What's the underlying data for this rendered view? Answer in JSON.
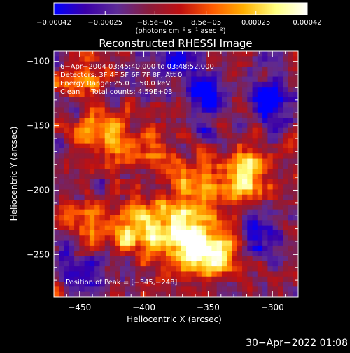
{
  "chart_data": {
    "type": "heatmap",
    "title": "Reconstructed RHESSI Image",
    "xlabel": "Heliocentric X (arcsec)",
    "ylabel": "Heliocentric Y (arcsec)",
    "xlim": [
      -470,
      -280
    ],
    "ylim": [
      -283,
      -92
    ],
    "x_ticks": [
      -450,
      -400,
      -350,
      -300
    ],
    "x_tick_labels": [
      "−450",
      "−400",
      "−350",
      "−300"
    ],
    "y_ticks": [
      -100,
      -150,
      -200,
      -250
    ],
    "y_tick_labels": [
      "−100",
      "−150",
      "−200",
      "−250"
    ],
    "colorbar": {
      "range": [
        -0.00042,
        0.00042
      ],
      "ticks": [
        -0.00042,
        -0.00025,
        -8.5e-05,
        8.5e-05,
        0.00025,
        0.00042
      ],
      "tick_labels": [
        "−0.00042",
        "−0.00025",
        "−8.5e−05",
        "8.5e−05",
        "0.00025",
        "0.00042"
      ],
      "unit_label": "(photons cm⁻² s⁻¹ asec⁻²)",
      "colors": [
        "#0000ff",
        "#3b00a8",
        "#5d2b96",
        "#8a1c3c",
        "#c01010",
        "#ff5a00",
        "#ffb000",
        "#ffff80",
        "#ffffff"
      ]
    },
    "annotations": [
      "6−Apr−2004 03:45:40.000 to 03:48:52.000",
      "Detectors: 3F 4F 5F 6F 7F 8F, Att 0",
      "Energy Range: 25.0 − 50.0 keV",
      "Clean     Total counts: 4.59E+03"
    ],
    "peak_label": "Position of Peak = [−345,−248]",
    "peak_position": [
      -345,
      -248
    ],
    "bright_regions": [
      {
        "x": -345,
        "y": -248,
        "rel": 1.0
      },
      {
        "x": -375,
        "y": -235,
        "rel": 0.85
      },
      {
        "x": -410,
        "y": -230,
        "rel": 0.75
      },
      {
        "x": -430,
        "y": -160,
        "rel": 0.7
      },
      {
        "x": -320,
        "y": -190,
        "rel": 0.8
      },
      {
        "x": -360,
        "y": -200,
        "rel": 0.65
      },
      {
        "x": -450,
        "y": -230,
        "rel": 0.55
      },
      {
        "x": -395,
        "y": -170,
        "rel": 0.5
      },
      {
        "x": -450,
        "y": -110,
        "rel": 0.45
      }
    ],
    "dark_regions": [
      {
        "x": -460,
        "y": -250
      },
      {
        "x": -445,
        "y": -265
      },
      {
        "x": -300,
        "y": -130
      },
      {
        "x": -310,
        "y": -235
      },
      {
        "x": -380,
        "y": -100
      },
      {
        "x": -350,
        "y": -125
      }
    ]
  },
  "footer": {
    "date": "30−Apr−2022 01:08"
  }
}
